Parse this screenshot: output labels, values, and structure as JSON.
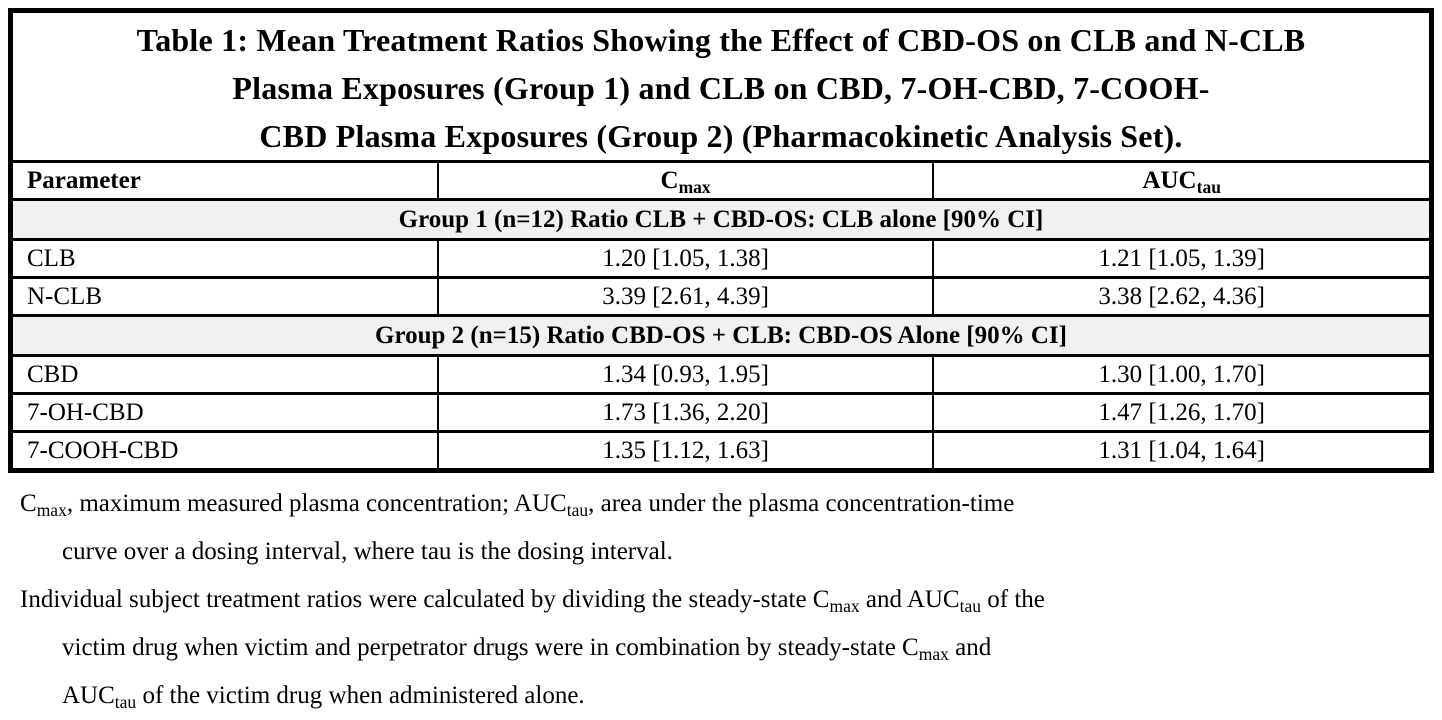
{
  "title": {
    "lines": [
      "Table 1: Mean Treatment Ratios Showing the Effect of CBD-OS on CLB and N-CLB",
      "Plasma Exposures (Group 1) and CLB on CBD, 7-OH-CBD, 7-COOH-",
      "CBD Plasma Exposures (Group 2) (Pharmacokinetic Analysis Set)."
    ]
  },
  "table": {
    "header": {
      "parameter": "Parameter",
      "cmax": {
        "base": "C",
        "sub": "max"
      },
      "auctau": {
        "base": "AUC",
        "sub": "tau"
      }
    },
    "group1": {
      "label": "Group 1 (n=12) Ratio CLB + CBD-OS: CLB alone [90% CI]",
      "rows": [
        {
          "param": "CLB",
          "cmax": "1.20 [1.05, 1.38]",
          "auctau": "1.21 [1.05, 1.39]"
        },
        {
          "param": "N-CLB",
          "cmax": "3.39 [2.61, 4.39]",
          "auctau": "3.38 [2.62, 4.36]"
        }
      ]
    },
    "group2": {
      "label": "Group 2 (n=15) Ratio CBD-OS + CLB: CBD-OS Alone [90% CI]",
      "rows": [
        {
          "param": "CBD",
          "cmax": "1.34 [0.93, 1.95]",
          "auctau": "1.30 [1.00, 1.70]"
        },
        {
          "param": "7-OH-CBD",
          "cmax": "1.73 [1.36, 2.20]",
          "auctau": "1.47 [1.26, 1.70]"
        },
        {
          "param": "7-COOH-CBD",
          "cmax": "1.35 [1.12, 1.63]",
          "auctau": "1.31 [1.04, 1.64]"
        }
      ]
    }
  },
  "footnotes": [
    {
      "lines": [
        [
          {
            "text": "C"
          },
          {
            "sub": "max"
          },
          {
            "text": ", maximum measured plasma concentration; AUC"
          },
          {
            "sub": "tau"
          },
          {
            "text": ", area under the plasma concentration-time"
          }
        ],
        [
          {
            "text": "curve over a dosing interval, where tau is the dosing interval."
          }
        ]
      ]
    },
    {
      "lines": [
        [
          {
            "text": "Individual subject treatment ratios were calculated by dividing the steady-state C"
          },
          {
            "sub": "max"
          },
          {
            "text": " and AUC"
          },
          {
            "sub": "tau"
          },
          {
            "text": " of the"
          }
        ],
        [
          {
            "text": "victim drug when victim and perpetrator drugs were in combination by steady-state C"
          },
          {
            "sub": "max"
          },
          {
            "text": " and"
          }
        ],
        [
          {
            "text": "AUC"
          },
          {
            "sub": "tau"
          },
          {
            "text": " of the victim drug when administered alone."
          }
        ]
      ]
    }
  ],
  "colors": {
    "band_bg": "#f1f1f1",
    "border": "#000000",
    "text": "#000000",
    "page_bg": "#ffffff"
  }
}
